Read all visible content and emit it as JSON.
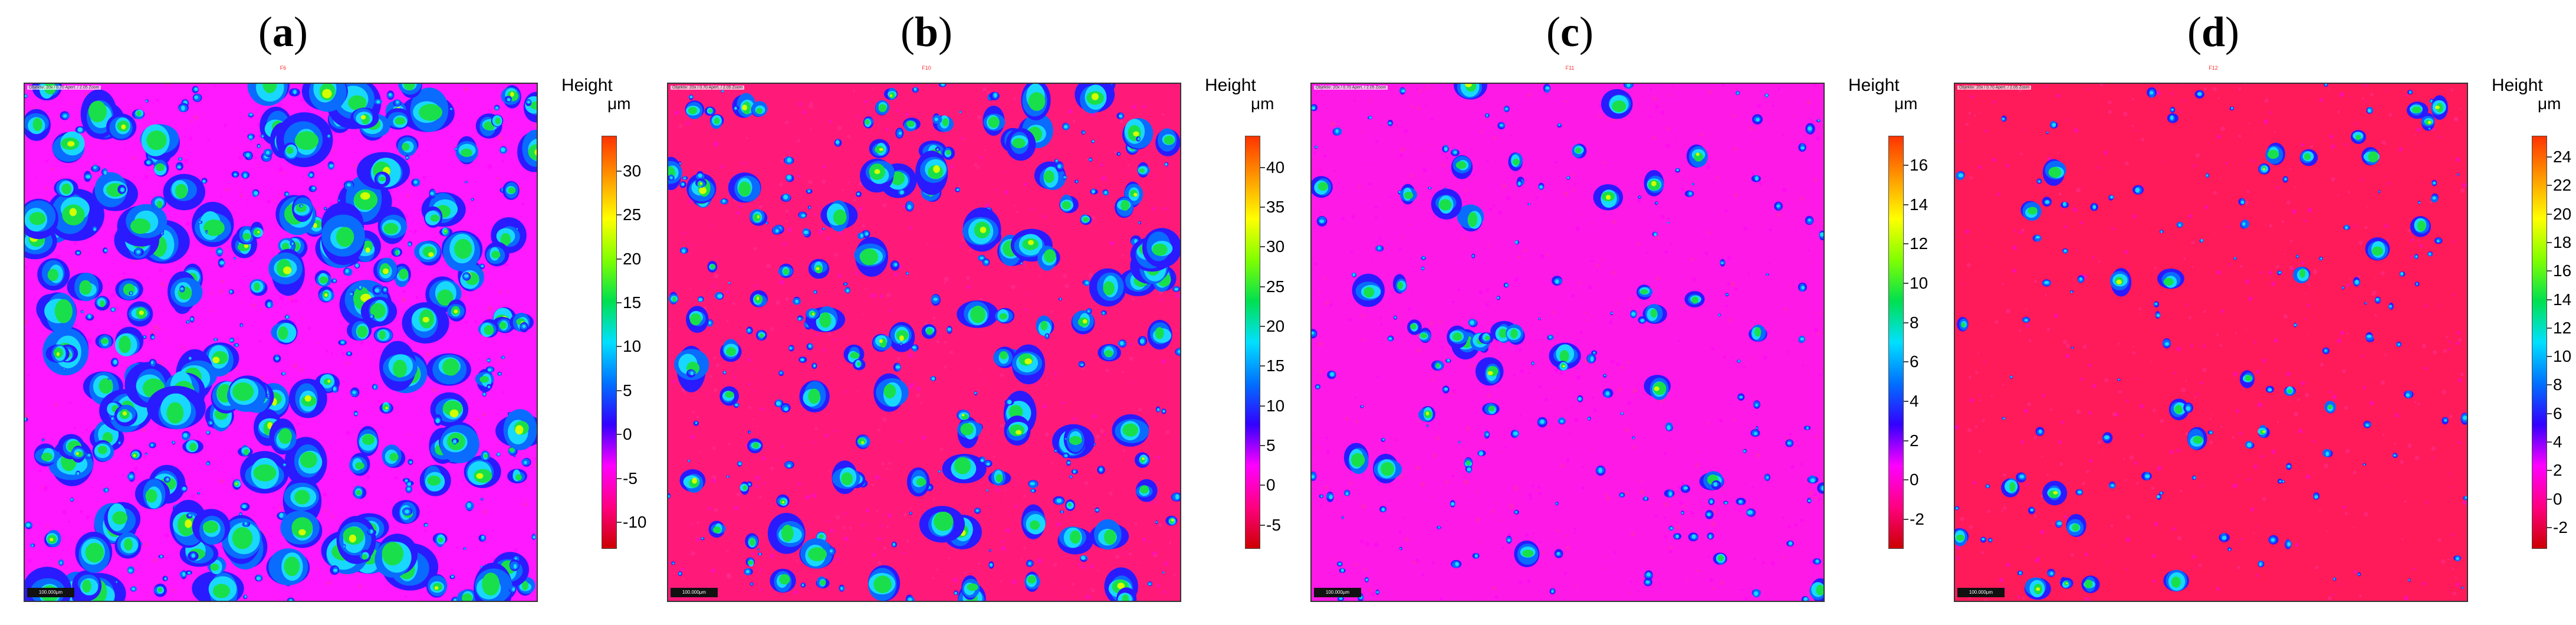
{
  "panels": [
    {
      "label_open": "(",
      "label_letter": "a",
      "label_close": ")",
      "subtitle": "F6",
      "map_info": "Objektiv: 20x / 0.70 Apert. / 2.05 Zoom",
      "scale_bar": "100.000μm",
      "height_label": "Height",
      "unit": "μm",
      "ticks": [
        "30",
        "25",
        "20",
        "15",
        "10",
        "5",
        "0",
        "-5",
        "-10"
      ],
      "tick_values": [
        30,
        25,
        20,
        15,
        10,
        5,
        0,
        -5,
        -10
      ],
      "range": [
        -13,
        34
      ],
      "background": "#ff19ff",
      "blob_density": 1.0
    },
    {
      "label_open": "(",
      "label_letter": "b",
      "label_close": ")",
      "subtitle": "F10",
      "map_info": "Objektiv: 20x / 0.70 Apert. / 2.05 Zoom",
      "scale_bar": "100.000μm",
      "height_label": "Height",
      "unit": "μm",
      "ticks": [
        "40",
        "35",
        "30",
        "25",
        "20",
        "15",
        "10",
        "5",
        "0",
        "-5"
      ],
      "tick_values": [
        40,
        35,
        30,
        25,
        20,
        15,
        10,
        5,
        0,
        -5
      ],
      "range": [
        -8,
        44
      ],
      "background": "#ff1a7a",
      "blob_density": 0.6
    },
    {
      "label_open": "(",
      "label_letter": "c",
      "label_close": ")",
      "subtitle": "F11",
      "map_info": "Objektiv: 20x / 0.70 Apert. / 2.05 Zoom",
      "scale_bar": "100.000μm",
      "height_label": "Height",
      "unit": "μm",
      "ticks": [
        "16",
        "14",
        "12",
        "10",
        "8",
        "6",
        "4",
        "2",
        "0",
        "-2"
      ],
      "tick_values": [
        16,
        14,
        12,
        10,
        8,
        6,
        4,
        2,
        0,
        -2
      ],
      "range": [
        -3.5,
        17.5
      ],
      "background": "#ff19e6",
      "blob_density": 0.3
    },
    {
      "label_open": "(",
      "label_letter": "d",
      "label_close": ")",
      "subtitle": "F12",
      "map_info": "Objektiv: 20x / 0.70 Apert. / 2.05 Zoom",
      "scale_bar": "100.000μm",
      "height_label": "Height",
      "unit": "μm",
      "ticks": [
        "24",
        "22",
        "20",
        "18",
        "16",
        "14",
        "12",
        "10",
        "8",
        "6",
        "4",
        "2",
        "0",
        "-2"
      ],
      "tick_values": [
        24,
        22,
        20,
        18,
        16,
        14,
        12,
        10,
        8,
        6,
        4,
        2,
        0,
        -2
      ],
      "range": [
        -3.5,
        25.5
      ],
      "background": "#ff1a5a",
      "blob_density": 0.15
    }
  ],
  "colors": {
    "colormap": [
      "#cc0000",
      "#ff0080",
      "#ff00ff",
      "#3300ff",
      "#0070ff",
      "#00e0ff",
      "#00e050",
      "#80ff00",
      "#ffff00",
      "#ff9900",
      "#ff3300"
    ]
  }
}
